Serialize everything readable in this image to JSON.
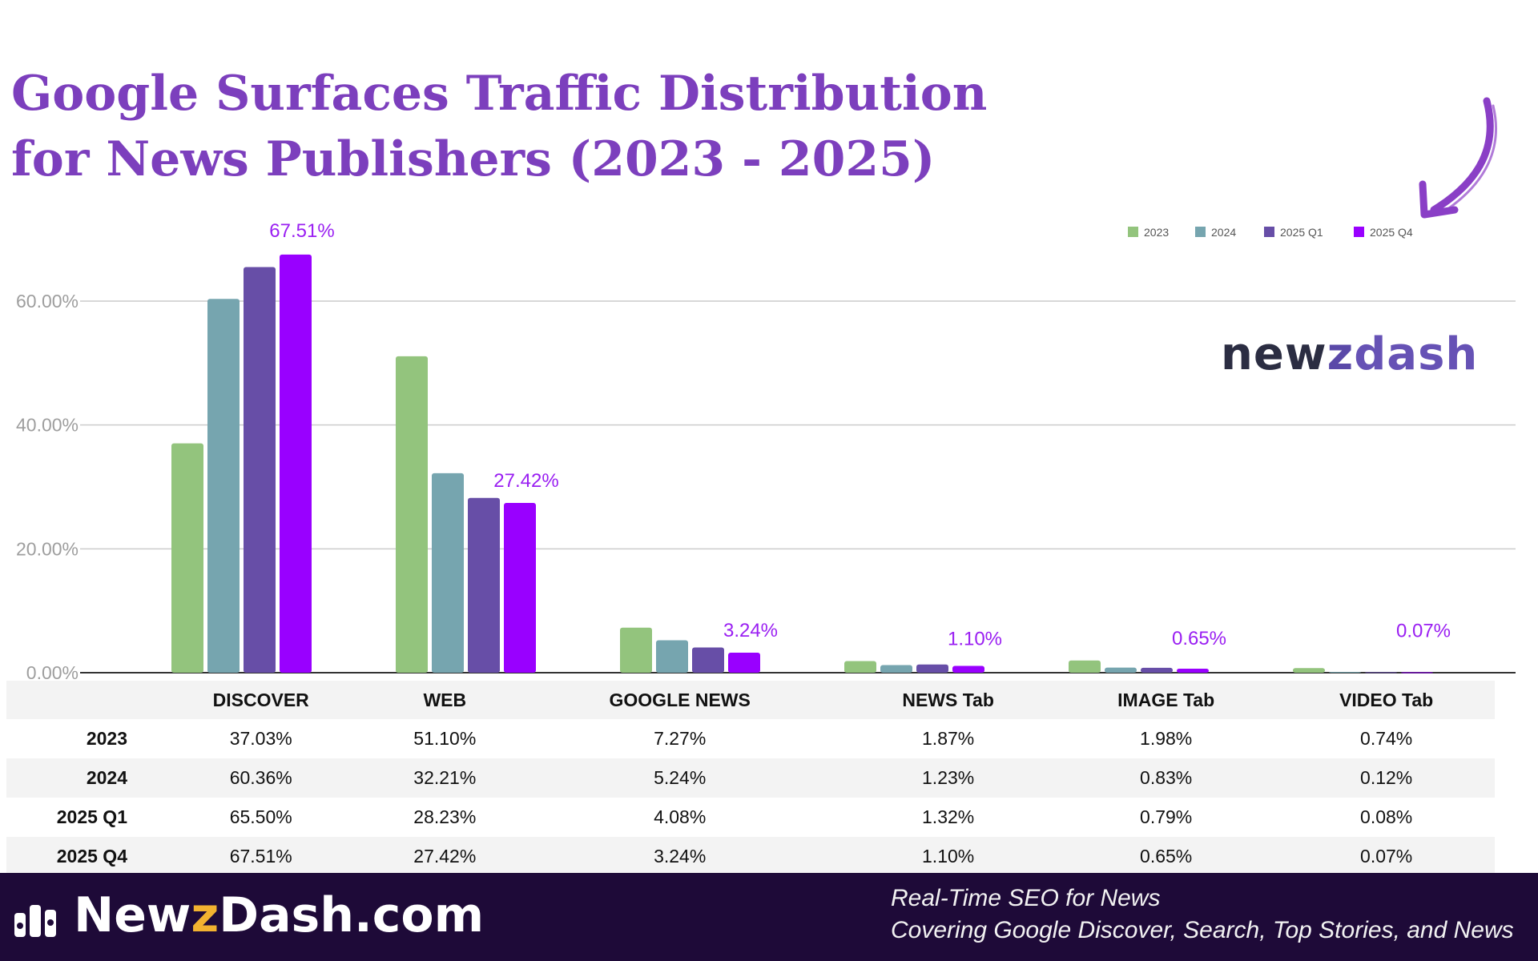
{
  "title": {
    "line1": "Google Surfaces Traffic Distribution",
    "line2": "for News Publishers (2023 - 2025)"
  },
  "brand": {
    "logo_part1": "new",
    "logo_part2": "z",
    "logo_part3": "dash",
    "footer_part1": "Newz",
    "footer_part2": "Dash",
    "footer_part3": ".com",
    "footer_part1a": "New",
    "footer_part1b": "z",
    "tagline_line1": "Real-Time SEO for News",
    "tagline_line2": "Covering Google Discover, Search, Top Stories, and News"
  },
  "colors": {
    "title": "#7c3fbd",
    "2023": "#93c47d",
    "2024": "#76a5af",
    "2025 Q1": "#674ea7",
    "2025 Q4": "#9900ff",
    "annotation": "#9a1ff2",
    "footer_bg": "#1e0a38"
  },
  "chart_data": {
    "type": "bar",
    "categories": [
      "DISCOVER",
      "WEB",
      "GOOGLE NEWS",
      "NEWS Tab",
      "IMAGE Tab",
      "VIDEO Tab"
    ],
    "series": [
      {
        "name": "2023",
        "values": [
          37.03,
          51.1,
          7.27,
          1.87,
          1.98,
          0.74
        ]
      },
      {
        "name": "2024",
        "values": [
          60.36,
          32.21,
          5.24,
          1.23,
          0.83,
          0.12
        ]
      },
      {
        "name": "2025 Q1",
        "values": [
          65.5,
          28.23,
          4.08,
          1.32,
          0.79,
          0.08
        ]
      },
      {
        "name": "2025 Q4",
        "values": [
          67.51,
          27.42,
          3.24,
          1.1,
          0.65,
          0.07
        ]
      }
    ],
    "annotations": [
      "67.51%",
      "27.42%",
      "3.24%",
      "1.10%",
      "0.65%",
      "0.07%"
    ],
    "y_ticks": [
      "0.00%",
      "20.00%",
      "40.00%",
      "60.00%"
    ],
    "ylim": [
      0,
      70
    ],
    "grid": true,
    "legend": "top-right"
  },
  "table": {
    "headers": [
      "",
      "DISCOVER",
      "WEB",
      "GOOGLE NEWS",
      "NEWS Tab",
      "IMAGE Tab",
      "VIDEO Tab"
    ],
    "rows": [
      [
        "2023",
        "37.03%",
        "51.10%",
        "7.27%",
        "1.87%",
        "1.98%",
        "0.74%"
      ],
      [
        "2024",
        "60.36%",
        "32.21%",
        "5.24%",
        "1.23%",
        "0.83%",
        "0.12%"
      ],
      [
        "2025 Q1",
        "65.50%",
        "28.23%",
        "4.08%",
        "1.32%",
        "0.79%",
        "0.08%"
      ],
      [
        "2025 Q4",
        "67.51%",
        "27.42%",
        "3.24%",
        "1.10%",
        "0.65%",
        "0.07%"
      ]
    ]
  }
}
